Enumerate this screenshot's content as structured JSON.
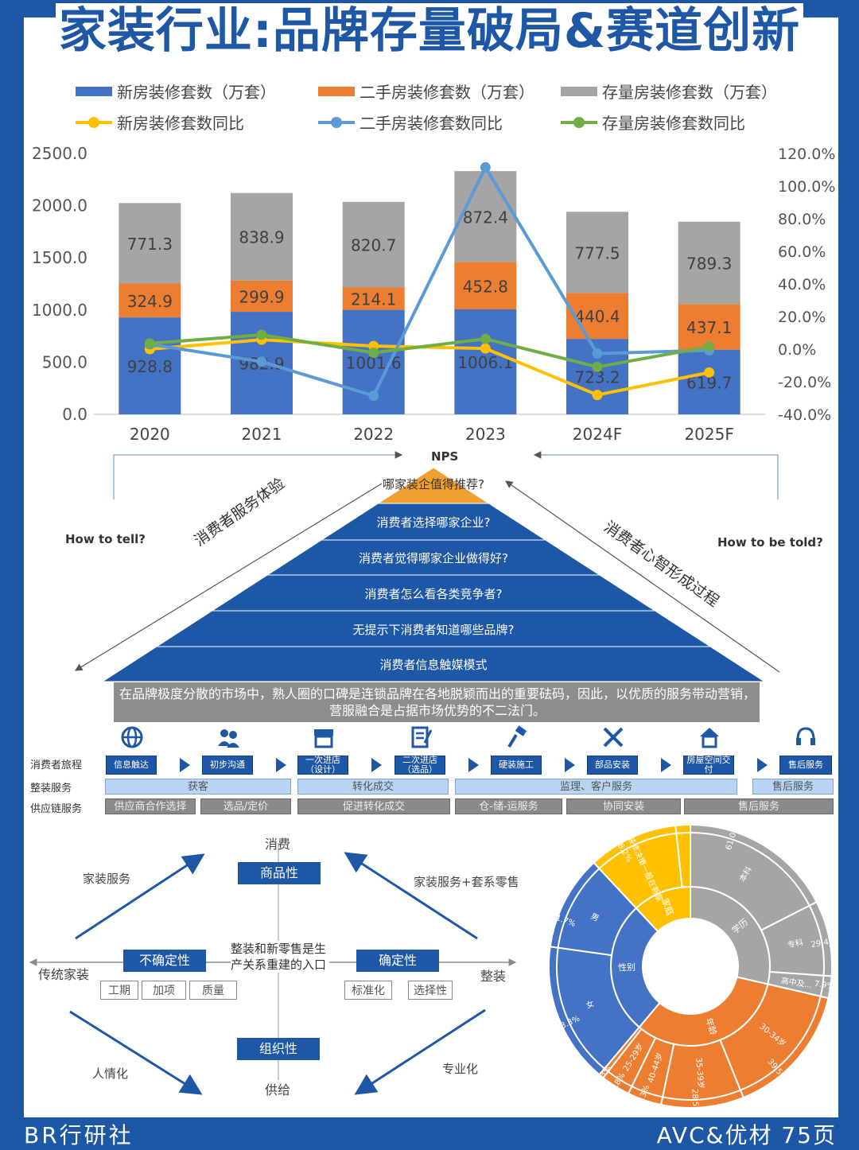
{
  "header": {
    "title": "家装行业:品牌存量破局&赛道创新"
  },
  "footer": {
    "left": "BR行研社",
    "right": "AVC&优材 75页"
  },
  "colors": {
    "blue": "#4472c4",
    "orange": "#ed7d31",
    "gray": "#a5a5a5",
    "yellow": "#ffc000",
    "lightblue": "#5b9bd5",
    "green": "#70ad47",
    "navy": "#1d57a6"
  },
  "chart_data": {
    "type": "bar",
    "stacked": true,
    "categories": [
      "2020",
      "2021",
      "2022",
      "2023",
      "2024F",
      "2025F"
    ],
    "series": [
      {
        "name": "新房装修套数（万套）",
        "kind": "bar",
        "values": [
          928.8,
          982.9,
          1001.6,
          1006.1,
          723.2,
          619.7
        ]
      },
      {
        "name": "二手房装修套数（万套）",
        "kind": "bar",
        "values": [
          324.9,
          299.9,
          214.1,
          452.8,
          440.4,
          437.1
        ]
      },
      {
        "name": "存量房装修套数（万套）",
        "kind": "bar",
        "values": [
          771.3,
          838.9,
          820.7,
          872.4,
          777.5,
          789.3
        ]
      },
      {
        "name": "新房装修套数同比",
        "kind": "line",
        "axis": "right",
        "values": [
          0.0,
          5.8,
          1.9,
          0.4,
          -28.1,
          -14.3
        ]
      },
      {
        "name": "二手房装修套数同比",
        "kind": "line",
        "axis": "right",
        "values": [
          3.0,
          -7.7,
          -28.6,
          111.5,
          -2.7,
          -0.7
        ]
      },
      {
        "name": "存量房装修套数同比",
        "kind": "line",
        "axis": "right",
        "values": [
          3.5,
          8.8,
          -2.2,
          6.3,
          -10.9,
          1.5
        ]
      }
    ],
    "yticks_left": [
      "2500.0",
      "2000.0",
      "1500.0",
      "1000.0",
      "500.0",
      "0.0"
    ],
    "yticks_right": [
      "120.0%",
      "100.0%",
      "80.0%",
      "60.0%",
      "40.0%",
      "20.0%",
      "0.0%",
      "-20.0%",
      "-40.0%"
    ],
    "ylim": [
      0,
      2500
    ],
    "ylim_right": [
      -40,
      120
    ],
    "legend_position": "top"
  },
  "pyramid": {
    "top": "NPS",
    "left_q": "How to tell?",
    "right_q": "How to be told?",
    "left_diag": "消费者服务体验",
    "right_diag": "消费者心智形成过程",
    "levels": [
      "哪家装企值得推荐?",
      "消费者选择哪家企业?",
      "消费者觉得哪家企业做得好?",
      "消费者怎么看各类竞争者?",
      "无提示下消费者知道哪些品牌?",
      "消费者信息触媒模式"
    ],
    "note": "在品牌极度分散的市场中，熟人圈的口碑是连锁品牌在各地脱颖而出的重要砝码，因此，以优质的服务带动营销，营服融合是占据市场优势的不二法门。"
  },
  "journey": {
    "row_labels": [
      "消费者旅程",
      "整装服务",
      "供应链服务"
    ],
    "steps": [
      {
        "label": "信息触达",
        "icon": "globe-icon"
      },
      {
        "label": "初步沟通",
        "icon": "people-icon"
      },
      {
        "label": "一次进店（设计）",
        "icon": "store-icon"
      },
      {
        "label": "二次进店（选品）",
        "icon": "document-icon"
      },
      {
        "label": "硬装施工",
        "icon": "brush-icon"
      },
      {
        "label": "部品安装",
        "icon": "tools-icon"
      },
      {
        "label": "房屋空间交付",
        "icon": "house-icon"
      },
      {
        "label": "售后服务",
        "icon": "headset-icon"
      }
    ],
    "service": [
      "获客",
      "转化成交",
      "监理、客户服务",
      "售后服务"
    ],
    "supply": [
      "供应商合作选择",
      "选品/定价",
      "促进转化成交",
      "仓-储-运服务",
      "协同安装",
      "售后服务"
    ]
  },
  "quadrant": {
    "top_axis": "消费",
    "bottom_axis": "供给",
    "left_axis": "传统家装",
    "right_axis": "整装",
    "top_box": "商品性",
    "bottom_box": "组织性",
    "left_box": "不确定性",
    "right_box": "确定性",
    "center": "整装和新零售是生产关系重建的入口",
    "left_tags": [
      "工期",
      "加项",
      "质量"
    ],
    "right_tags": [
      "标准化",
      "选择性"
    ],
    "tl": "家装服务",
    "tr": "家装服务+套系零售",
    "bl": "人情化",
    "br": "专业化"
  },
  "sunburst": {
    "inner": [
      {
        "label": "学历",
        "color": "#a5a5a5"
      },
      {
        "label": "年龄",
        "color": "#ed7d31"
      },
      {
        "label": "性别",
        "color": "#4472c4"
      },
      {
        "label": "家庭",
        "color": "#ffc000"
      }
    ],
    "middle": [
      {
        "label": "本科",
        "pct": "61.0%"
      },
      {
        "label": "专科",
        "pct": "29.4%"
      },
      {
        "label": "高中及...",
        "pct": "7.9%"
      },
      {
        "label": "30-34岁",
        "pct": "39.5%"
      },
      {
        "label": "35-39岁",
        "pct": "28.5%"
      },
      {
        "label": "40-44岁",
        "pct": "12.3%"
      },
      {
        "label": "25-29岁",
        "pct": "11.8%"
      },
      {
        "label": "",
        "pct": "5.3%"
      },
      {
        "label": "女",
        "pct": "58.3%"
      },
      {
        "label": "男",
        "pct": "41.7%"
      },
      {
        "label": "装修决策一般在新家",
        "pct": "48.2%"
      }
    ]
  }
}
